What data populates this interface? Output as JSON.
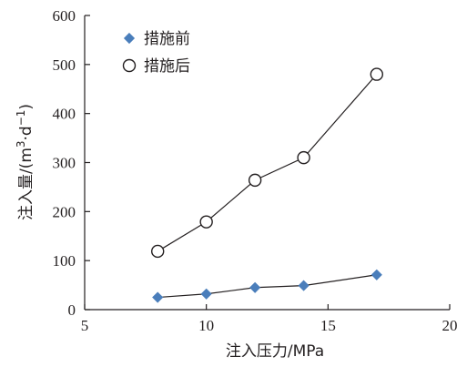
{
  "chart_data": {
    "type": "scatter",
    "xlabel": "注入压力/MPa",
    "ylabel": {
      "main": "注入量/(m",
      "sup1": "3",
      "mid": "·d",
      "sup2": "−1",
      "end": ")"
    },
    "xlim": [
      5,
      20
    ],
    "ylim": [
      0,
      600
    ],
    "xticks": [
      5,
      10,
      15,
      20
    ],
    "yticks": [
      0,
      100,
      200,
      300,
      400,
      500,
      600
    ],
    "grid": false,
    "legend_position": "top-left",
    "series": [
      {
        "name": "措施前",
        "marker": "filled-diamond",
        "color": "#4a7ebb",
        "line": true,
        "x": [
          8,
          10,
          12,
          14,
          17
        ],
        "y": [
          25,
          32,
          45,
          49,
          71
        ]
      },
      {
        "name": "措施后",
        "marker": "open-circle",
        "color": "#231f20",
        "line": true,
        "x": [
          8,
          10,
          12,
          14,
          17
        ],
        "y": [
          119,
          179,
          264,
          310,
          480
        ]
      }
    ]
  }
}
